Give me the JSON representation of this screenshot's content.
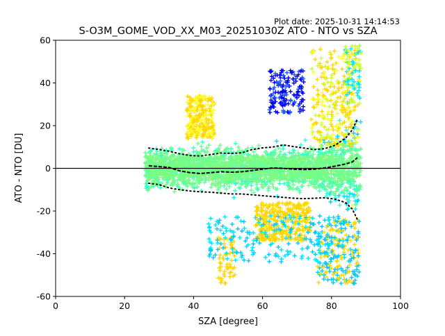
{
  "plot_date": "Plot date: 2025-10-31 14:14:53",
  "chart_data": {
    "type": "scatter",
    "title": "S-O3M_GOME_VOD_XX_M03_20251030Z ATO - NTO vs SZA",
    "xlabel": "SZA [degree]",
    "ylabel": "ATO - NTO [DU]",
    "xlim": [
      0,
      100
    ],
    "ylim": [
      -60,
      60
    ],
    "xticks": [
      0,
      20,
      40,
      60,
      80,
      100
    ],
    "yticks": [
      -60,
      -40,
      -20,
      0,
      20,
      40,
      60
    ],
    "grid": false,
    "legend": "none",
    "marker": "plus",
    "zero_line": 0,
    "point_colors": [
      "#7CFC7C",
      "#66FF99",
      "#33FFCC",
      "#00E5FF",
      "#00C8FF",
      "#FFD700",
      "#FFFF33",
      "#CCFF33",
      "#0000EE",
      "#2255FF"
    ],
    "upper_band": [
      [
        27,
        9.5
      ],
      [
        30,
        8.8
      ],
      [
        33,
        8.0
      ],
      [
        36,
        6.8
      ],
      [
        39,
        6.0
      ],
      [
        42,
        5.8
      ],
      [
        45,
        6.5
      ],
      [
        48,
        7.2
      ],
      [
        51,
        7.0
      ],
      [
        54,
        7.3
      ],
      [
        57,
        8.8
      ],
      [
        60,
        9.6
      ],
      [
        63,
        10.0
      ],
      [
        66,
        11.0
      ],
      [
        69,
        10.2
      ],
      [
        72,
        9.5
      ],
      [
        75,
        8.8
      ],
      [
        78,
        9.2
      ],
      [
        81,
        10.8
      ],
      [
        84,
        14.0
      ],
      [
        86,
        18.0
      ],
      [
        87.5,
        23.0
      ]
    ],
    "lower_band": [
      [
        27,
        -7.0
      ],
      [
        30,
        -7.6
      ],
      [
        33,
        -9.2
      ],
      [
        36,
        -10.0
      ],
      [
        39,
        -10.6
      ],
      [
        42,
        -11.0
      ],
      [
        45,
        -11.2
      ],
      [
        48,
        -11.6
      ],
      [
        51,
        -12.0
      ],
      [
        54,
        -12.0
      ],
      [
        57,
        -12.4
      ],
      [
        60,
        -12.8
      ],
      [
        63,
        -13.2
      ],
      [
        66,
        -13.6
      ],
      [
        69,
        -14.0
      ],
      [
        72,
        -14.2
      ],
      [
        75,
        -14.0
      ],
      [
        78,
        -13.8
      ],
      [
        81,
        -14.4
      ],
      [
        84,
        -16.0
      ],
      [
        86,
        -19.0
      ],
      [
        87.5,
        -24.0
      ]
    ],
    "median_line": [
      [
        27,
        1.2
      ],
      [
        30,
        0.8
      ],
      [
        33,
        0.4
      ],
      [
        36,
        -1.2
      ],
      [
        39,
        -2.0
      ],
      [
        42,
        -2.4
      ],
      [
        45,
        -2.0
      ],
      [
        48,
        -1.6
      ],
      [
        51,
        -1.8
      ],
      [
        54,
        -1.6
      ],
      [
        57,
        -1.0
      ],
      [
        60,
        -0.4
      ],
      [
        63,
        0.2
      ],
      [
        66,
        0.0
      ],
      [
        69,
        -0.4
      ],
      [
        72,
        -0.6
      ],
      [
        75,
        -0.4
      ],
      [
        78,
        0.2
      ],
      [
        81,
        1.0
      ],
      [
        84,
        2.0
      ],
      [
        86,
        3.0
      ],
      [
        87.5,
        5.0
      ]
    ]
  }
}
